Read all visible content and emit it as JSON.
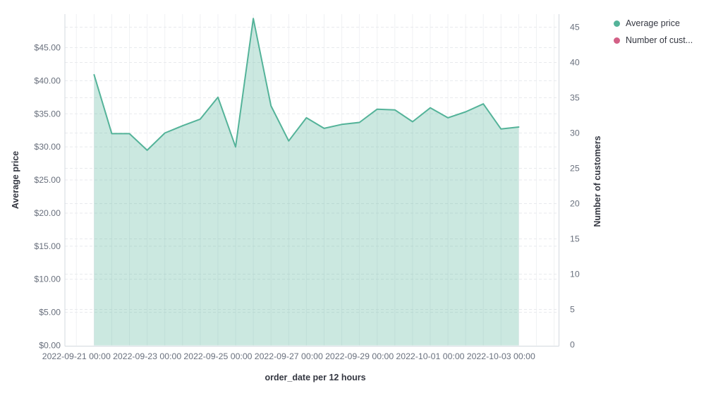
{
  "legend": {
    "items": [
      {
        "label": "Average price",
        "color": "#54b399"
      },
      {
        "label": "Number of cust...",
        "color": "#d36086"
      }
    ]
  },
  "chart_data": {
    "type": "area",
    "title": "",
    "xlabel": "order_date per 12 hours",
    "grid": true,
    "legend_position": "top-right",
    "left_axis": {
      "label": "Average price",
      "tick_labels": [
        "$0.00",
        "$5.00",
        "$10.00",
        "$15.00",
        "$20.00",
        "$25.00",
        "$30.00",
        "$35.00",
        "$40.00",
        "$45.00"
      ],
      "tick_values": [
        0,
        5,
        10,
        15,
        20,
        25,
        30,
        35,
        40,
        45
      ],
      "range": [
        0,
        50
      ]
    },
    "right_axis": {
      "label": "Number of customers",
      "tick_labels": [
        "0",
        "5",
        "10",
        "15",
        "20",
        "25",
        "30",
        "35",
        "40",
        "45"
      ],
      "tick_values": [
        0,
        5,
        10,
        15,
        20,
        25,
        30,
        35,
        40,
        45
      ],
      "range": [
        0,
        45
      ]
    },
    "x_axis": {
      "tick_labels": [
        "2022-09-21 00:00",
        "2022-09-23 00:00",
        "2022-09-25 00:00",
        "2022-09-27 00:00",
        "2022-09-29 00:00",
        "2022-10-01 00:00",
        "2022-10-03 00:00"
      ],
      "interval": "12 hours"
    },
    "series": [
      {
        "name": "Average price",
        "axis": "left",
        "color": "#54b399",
        "fill_opacity": 0.3,
        "x": [
          "2022-09-21 12:00",
          "2022-09-22 00:00",
          "2022-09-22 12:00",
          "2022-09-23 00:00",
          "2022-09-23 12:00",
          "2022-09-24 00:00",
          "2022-09-24 12:00",
          "2022-09-25 00:00",
          "2022-09-25 12:00",
          "2022-09-26 00:00",
          "2022-09-26 12:00",
          "2022-09-27 00:00",
          "2022-09-27 12:00",
          "2022-09-28 00:00",
          "2022-09-28 12:00",
          "2022-09-29 00:00",
          "2022-09-29 12:00",
          "2022-09-30 00:00",
          "2022-09-30 12:00",
          "2022-10-01 00:00",
          "2022-10-01 12:00",
          "2022-10-02 00:00",
          "2022-10-02 12:00",
          "2022-10-03 00:00",
          "2022-10-03 12:00"
        ],
        "values": [
          40.9,
          32.0,
          32.0,
          29.5,
          32.1,
          33.2,
          34.2,
          37.5,
          30.0,
          49.4,
          36.2,
          30.9,
          34.4,
          32.8,
          33.4,
          33.7,
          35.7,
          35.6,
          33.8,
          35.9,
          34.4,
          35.3,
          36.5,
          32.7,
          33.0
        ]
      },
      {
        "name": "Number of customers",
        "axis": "right",
        "color": "#d36086",
        "x": [],
        "values": []
      }
    ]
  }
}
